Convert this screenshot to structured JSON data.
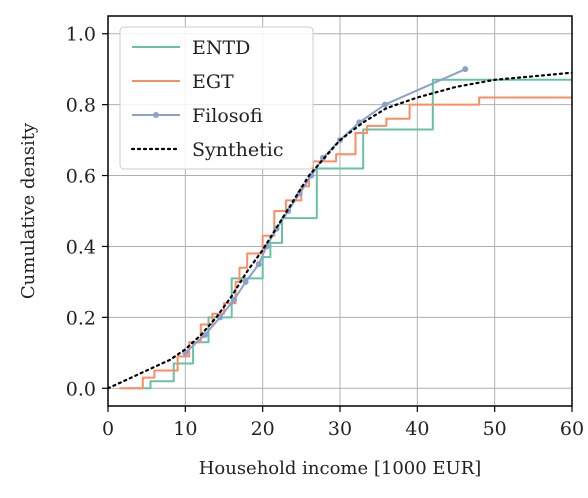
{
  "chart_data": {
    "type": "line",
    "title": "",
    "xlabel": "Household income [1000 EUR]",
    "ylabel": "Cumulative density",
    "xlim": [
      0,
      60
    ],
    "ylim": [
      -0.05,
      1.05
    ],
    "xticks": [
      0,
      10,
      20,
      30,
      40,
      50,
      60
    ],
    "yticks": [
      0.0,
      0.2,
      0.4,
      0.6,
      0.8,
      1.0
    ],
    "xtick_labels": [
      "0",
      "10",
      "20",
      "30",
      "40",
      "50",
      "60"
    ],
    "ytick_labels": [
      "0.0",
      "0.2",
      "0.4",
      "0.6",
      "0.8",
      "1.0"
    ],
    "grid": true,
    "legend_position": "top-left",
    "series": [
      {
        "name": "ENTD",
        "color": "#66c2a5",
        "style": "step",
        "points": [
          [
            2.5,
            0.0
          ],
          [
            5.5,
            0.0
          ],
          [
            5.5,
            0.02
          ],
          [
            8.5,
            0.02
          ],
          [
            8.5,
            0.07
          ],
          [
            11,
            0.07
          ],
          [
            11,
            0.13
          ],
          [
            13,
            0.13
          ],
          [
            13,
            0.2
          ],
          [
            16,
            0.2
          ],
          [
            16,
            0.31
          ],
          [
            20,
            0.31
          ],
          [
            20,
            0.37
          ],
          [
            21,
            0.37
          ],
          [
            21,
            0.41
          ],
          [
            22.5,
            0.41
          ],
          [
            22.5,
            0.48
          ],
          [
            27,
            0.48
          ],
          [
            27,
            0.62
          ],
          [
            33,
            0.62
          ],
          [
            33,
            0.73
          ],
          [
            42,
            0.73
          ],
          [
            42,
            0.87
          ],
          [
            60,
            0.87
          ]
        ]
      },
      {
        "name": "EGT",
        "color": "#fc8d62",
        "style": "step",
        "points": [
          [
            1.5,
            0.0
          ],
          [
            4.5,
            0.0
          ],
          [
            4.5,
            0.03
          ],
          [
            6,
            0.03
          ],
          [
            6,
            0.05
          ],
          [
            9,
            0.05
          ],
          [
            9,
            0.09
          ],
          [
            10.5,
            0.09
          ],
          [
            10.5,
            0.13
          ],
          [
            12,
            0.13
          ],
          [
            12,
            0.18
          ],
          [
            13.5,
            0.18
          ],
          [
            13.5,
            0.21
          ],
          [
            15,
            0.21
          ],
          [
            15,
            0.24
          ],
          [
            16.5,
            0.24
          ],
          [
            16.5,
            0.3
          ],
          [
            17,
            0.3
          ],
          [
            17,
            0.34
          ],
          [
            18,
            0.34
          ],
          [
            18,
            0.38
          ],
          [
            20,
            0.38
          ],
          [
            20,
            0.43
          ],
          [
            21.5,
            0.43
          ],
          [
            21.5,
            0.5
          ],
          [
            23,
            0.5
          ],
          [
            23,
            0.53
          ],
          [
            25,
            0.53
          ],
          [
            25,
            0.57
          ],
          [
            26,
            0.57
          ],
          [
            26,
            0.6
          ],
          [
            26.5,
            0.6
          ],
          [
            26.5,
            0.64
          ],
          [
            29.5,
            0.64
          ],
          [
            29.5,
            0.66
          ],
          [
            32,
            0.66
          ],
          [
            32,
            0.72
          ],
          [
            33.5,
            0.72
          ],
          [
            33.5,
            0.74
          ],
          [
            36,
            0.74
          ],
          [
            36,
            0.76
          ],
          [
            39,
            0.76
          ],
          [
            39,
            0.8
          ],
          [
            48,
            0.8
          ],
          [
            48,
            0.82
          ],
          [
            60,
            0.82
          ]
        ]
      },
      {
        "name": "Filosofi",
        "color": "#8da0cb",
        "style": "line-marker",
        "points": [
          [
            10,
            0.1
          ],
          [
            12.5,
            0.15
          ],
          [
            14.5,
            0.2
          ],
          [
            16.3,
            0.25
          ],
          [
            17.8,
            0.3
          ],
          [
            19.5,
            0.35
          ],
          [
            20.5,
            0.4
          ],
          [
            21.8,
            0.45
          ],
          [
            23.3,
            0.5
          ],
          [
            24.8,
            0.55
          ],
          [
            26.3,
            0.6
          ],
          [
            27.8,
            0.65
          ],
          [
            30,
            0.7
          ],
          [
            32.5,
            0.75
          ],
          [
            35.8,
            0.8
          ],
          [
            46.2,
            0.9
          ]
        ]
      },
      {
        "name": "Synthetic",
        "color": "#000000",
        "style": "dotted",
        "points": [
          [
            0,
            0.0
          ],
          [
            2,
            0.02
          ],
          [
            5,
            0.05
          ],
          [
            8,
            0.08
          ],
          [
            10,
            0.11
          ],
          [
            12,
            0.15
          ],
          [
            14,
            0.2
          ],
          [
            16,
            0.26
          ],
          [
            18,
            0.33
          ],
          [
            20,
            0.39
          ],
          [
            22,
            0.46
          ],
          [
            24,
            0.53
          ],
          [
            26,
            0.6
          ],
          [
            28,
            0.65
          ],
          [
            30,
            0.7
          ],
          [
            33,
            0.75
          ],
          [
            36,
            0.79
          ],
          [
            40,
            0.82
          ],
          [
            45,
            0.85
          ],
          [
            50,
            0.87
          ],
          [
            55,
            0.88
          ],
          [
            60,
            0.89
          ]
        ]
      }
    ]
  }
}
